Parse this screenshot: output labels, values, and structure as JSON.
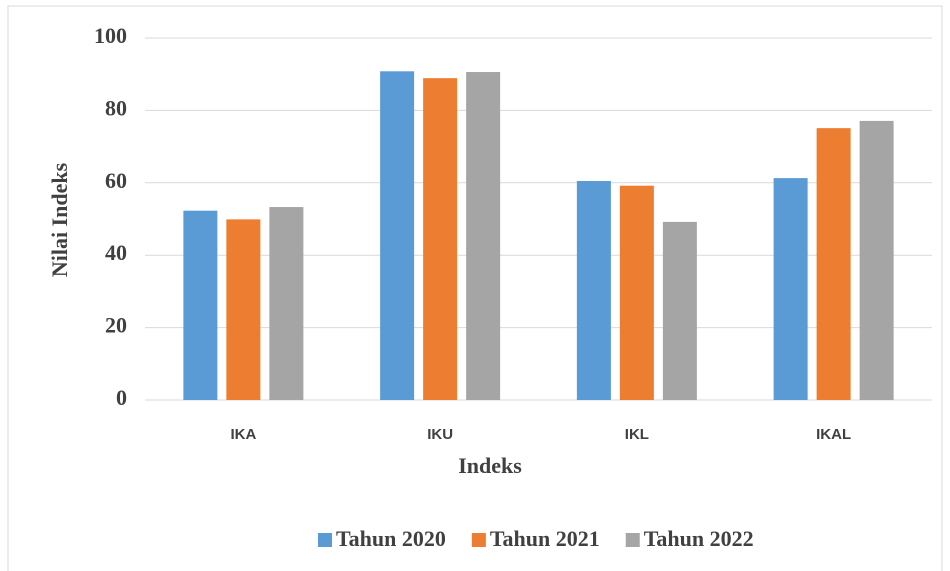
{
  "chart_data": {
    "type": "bar",
    "x_label": "Indeks",
    "y_label": "Nilai Indeks",
    "categories": [
      "IKA",
      "IKU",
      "IKL",
      "IKAL"
    ],
    "series": [
      {
        "name": "Tahun 2020",
        "color": "#5b9bd5",
        "values": [
          52.3,
          90.8,
          60.5,
          61.3
        ]
      },
      {
        "name": "Tahun 2021",
        "color": "#ed7d31",
        "values": [
          49.9,
          88.9,
          59.2,
          75.1
        ]
      },
      {
        "name": "Tahun 2022",
        "color": "#a5a5a5",
        "values": [
          53.3,
          90.6,
          49.2,
          77.1
        ]
      }
    ],
    "ylim": [
      0,
      100
    ],
    "yticks": [
      0,
      20,
      40,
      60,
      80,
      100
    ],
    "grid": true,
    "legend": "bottom"
  }
}
